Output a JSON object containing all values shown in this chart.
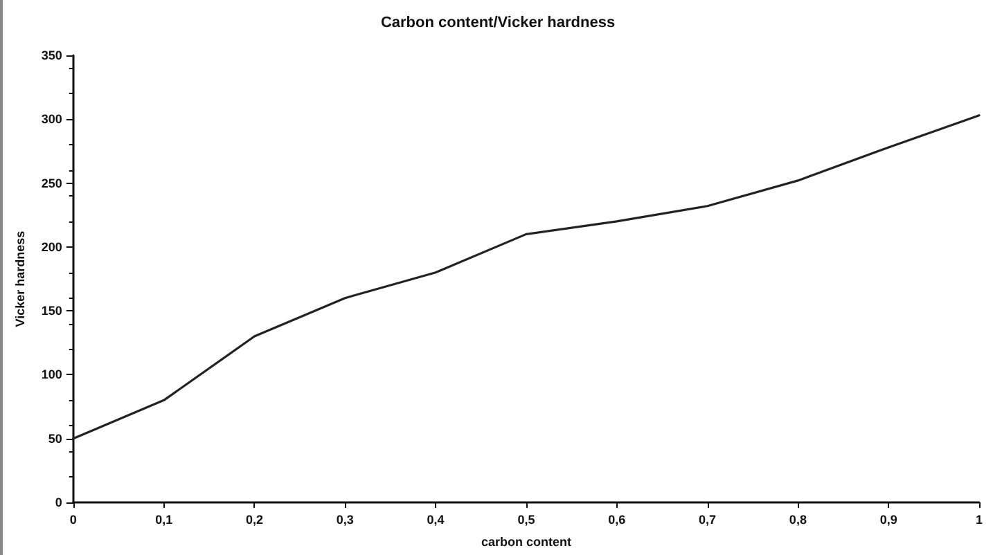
{
  "chart_data": {
    "type": "line",
    "title": "Carbon content/Vicker hardness",
    "xlabel": "carbon content",
    "ylabel": "Vicker hardness",
    "x": [
      0,
      0.1,
      0.2,
      0.3,
      0.4,
      0.5,
      0.6,
      0.7,
      0.8,
      0.9,
      1
    ],
    "series": [
      {
        "color": "#222222",
        "values": [
          50,
          80,
          130,
          160,
          180,
          210,
          220,
          232,
          252,
          278,
          303
        ]
      }
    ],
    "xlim": [
      0,
      1
    ],
    "xticks": [
      0,
      {
        "value": 0.1,
        "label": "0,1"
      },
      {
        "value": 0.2,
        "label": "0,2"
      },
      {
        "value": 0.3,
        "label": "0,3"
      },
      {
        "value": 0.4,
        "label": "0,4"
      },
      {
        "value": 0.5,
        "label": "0,5"
      },
      {
        "value": 0.6,
        "label": "0,6"
      },
      {
        "value": 0.7,
        "label": "0,7"
      },
      {
        "value": 0.8,
        "label": "0,8"
      },
      {
        "value": 0.9,
        "label": "0,9"
      },
      1
    ],
    "ylim": [
      0,
      350
    ],
    "yticks": [
      0,
      50,
      100,
      150,
      200,
      250,
      300,
      350
    ],
    "grid": false,
    "marker": "none",
    "line_style": "solid"
  }
}
